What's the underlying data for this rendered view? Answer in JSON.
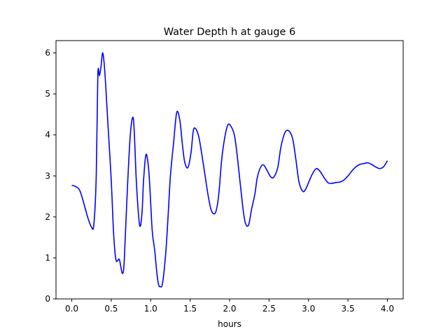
{
  "chart_data": {
    "type": "line",
    "title": "Water Depth h at gauge 6",
    "xlabel": "hours",
    "ylabel": "",
    "xlim": [
      -0.2,
      4.2
    ],
    "ylim": [
      0,
      6.3
    ],
    "xticks": [
      0.0,
      0.5,
      1.0,
      1.5,
      2.0,
      2.5,
      3.0,
      3.5,
      4.0
    ],
    "xtick_labels": [
      "0.0",
      "0.5",
      "1.0",
      "1.5",
      "2.0",
      "2.5",
      "3.0",
      "3.5",
      "4.0"
    ],
    "yticks": [
      0,
      1,
      2,
      3,
      4,
      5,
      6
    ],
    "ytick_labels": [
      "0",
      "1",
      "2",
      "3",
      "4",
      "5",
      "6"
    ],
    "grid": false,
    "line_color": "#0000ff",
    "series": [
      {
        "x": [
          0.0,
          0.05,
          0.1,
          0.15,
          0.2,
          0.25,
          0.28,
          0.31,
          0.33,
          0.35,
          0.37,
          0.39,
          0.41,
          0.43,
          0.46,
          0.5,
          0.53,
          0.56,
          0.6,
          0.62,
          0.64,
          0.66,
          0.68,
          0.71,
          0.74,
          0.77,
          0.79,
          0.82,
          0.86,
          0.89,
          0.91,
          0.94,
          0.97,
          0.99,
          1.02,
          1.05,
          1.08,
          1.1,
          1.12,
          1.15,
          1.19,
          1.22,
          1.25,
          1.29,
          1.33,
          1.37,
          1.4,
          1.43,
          1.47,
          1.51,
          1.54,
          1.57,
          1.61,
          1.65,
          1.69,
          1.73,
          1.77,
          1.82,
          1.86,
          1.9,
          1.94,
          1.98,
          2.02,
          2.06,
          2.09,
          2.13,
          2.17,
          2.2,
          2.24,
          2.28,
          2.32,
          2.35,
          2.39,
          2.43,
          2.47,
          2.52,
          2.56,
          2.61,
          2.65,
          2.7,
          2.75,
          2.8,
          2.84,
          2.88,
          2.93,
          2.97,
          3.01,
          3.05,
          3.1,
          3.15,
          3.2,
          3.25,
          3.3,
          3.35,
          3.4,
          3.45,
          3.5,
          3.55,
          3.6,
          3.65,
          3.7,
          3.75,
          3.8,
          3.85,
          3.9,
          3.95,
          4.0
        ],
        "y": [
          2.77,
          2.74,
          2.65,
          2.35,
          2.0,
          1.75,
          1.82,
          3.0,
          5.45,
          5.45,
          5.65,
          6.0,
          5.75,
          5.2,
          4.2,
          2.9,
          1.6,
          0.95,
          0.97,
          0.8,
          0.62,
          0.78,
          1.6,
          2.9,
          3.95,
          4.42,
          4.15,
          2.8,
          1.8,
          2.1,
          2.9,
          3.52,
          3.25,
          2.7,
          1.65,
          1.2,
          0.6,
          0.35,
          0.3,
          0.38,
          1.1,
          2.0,
          3.0,
          3.8,
          4.55,
          4.35,
          3.8,
          3.35,
          3.2,
          3.55,
          4.1,
          4.15,
          3.95,
          3.5,
          3.0,
          2.5,
          2.15,
          2.1,
          2.5,
          3.4,
          3.95,
          4.25,
          4.2,
          4.0,
          3.6,
          2.9,
          2.2,
          1.85,
          1.8,
          2.2,
          2.55,
          2.95,
          3.2,
          3.27,
          3.15,
          2.98,
          2.97,
          3.2,
          3.7,
          4.05,
          4.1,
          3.9,
          3.4,
          2.85,
          2.62,
          2.7,
          2.88,
          3.05,
          3.18,
          3.1,
          2.95,
          2.83,
          2.82,
          2.84,
          2.85,
          2.9,
          3.0,
          3.12,
          3.22,
          3.28,
          3.3,
          3.32,
          3.28,
          3.22,
          3.18,
          3.22,
          3.37
        ]
      }
    ]
  }
}
